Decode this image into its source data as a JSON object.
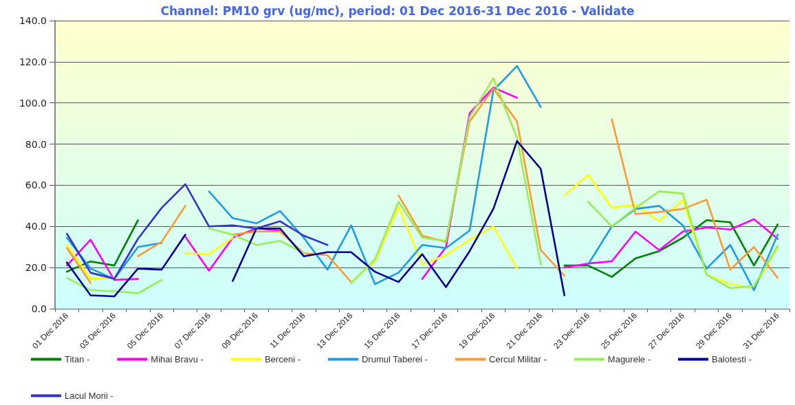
{
  "chart_data": {
    "type": "line",
    "title": "Channel: PM10 grv (ug/mc), period: 01 Dec 2016-31 Dec 2016 - Validate",
    "categories": [
      "01 Dec 2016",
      null,
      "03 Dec 2016",
      null,
      "05 Dec 2016",
      null,
      "07 Dec 2016",
      null,
      "09 Dec 2016",
      null,
      "11 Dec 2016",
      null,
      "13 Dec 2016",
      null,
      "15 Dec 2016",
      null,
      "17 Dec 2016",
      null,
      "19 Dec 2016",
      null,
      "21 Dec 2016",
      null,
      "23 Dec 2016",
      null,
      "25 Dec 2016",
      null,
      "27 Dec 2016",
      null,
      "29 Dec 2016",
      null,
      "31 Dec 2016"
    ],
    "series": [
      {
        "name": "Titan -",
        "color": "#008000",
        "values": [
          18,
          23,
          21,
          43,
          null,
          null,
          null,
          null,
          null,
          null,
          null,
          null,
          null,
          null,
          null,
          null,
          null,
          null,
          null,
          null,
          null,
          21,
          21,
          15.5,
          24.5,
          28,
          34.5,
          43,
          42,
          21,
          41
        ]
      },
      {
        "name": "Mihai Bravu -",
        "color": "#ff00ff",
        "values": [
          21,
          33.5,
          14,
          14.5,
          null,
          35,
          18.5,
          34.5,
          39,
          38,
          null,
          null,
          null,
          null,
          null,
          14.5,
          30,
          95,
          107.5,
          102.5,
          null,
          20,
          22,
          23,
          37.5,
          28.5,
          37.5,
          39.5,
          38.5,
          43.5,
          34
        ]
      },
      {
        "name": "Berceni -",
        "color": "#ffff00",
        "values": [
          31,
          14.5,
          15,
          null,
          null,
          27,
          26.5,
          34.5,
          null,
          null,
          null,
          null,
          13,
          23,
          49.5,
          21.5,
          26,
          33.5,
          40,
          19.5,
          null,
          55,
          65,
          49,
          50.5,
          42.5,
          53,
          16.5,
          12,
          10,
          30
        ]
      },
      {
        "name": "Drumul Taberei -",
        "color": "#1e9be6",
        "values": [
          34.5,
          19.5,
          14.5,
          30,
          32,
          null,
          57,
          44,
          41.5,
          47.5,
          34.5,
          19,
          40.5,
          12,
          17.5,
          31,
          29.5,
          38,
          106,
          118,
          98,
          null,
          21.5,
          40,
          48.5,
          50,
          40.5,
          19.5,
          31,
          9,
          36
        ]
      },
      {
        "name": "Cercul Militar -",
        "color": "#ff9933",
        "values": [
          29.5,
          12.5,
          null,
          25.5,
          32.5,
          50,
          null,
          36,
          37.5,
          37.5,
          27,
          26,
          13,
          null,
          55,
          35.5,
          32.5,
          91,
          107,
          91,
          28.5,
          16,
          null,
          92,
          46,
          47,
          48.5,
          53,
          19,
          30,
          15
        ]
      },
      {
        "name": "Magurele -",
        "color": "#99ee55",
        "values": [
          15,
          9,
          8.5,
          7.5,
          14,
          null,
          39,
          36,
          31,
          33,
          27,
          null,
          12.5,
          24,
          52,
          34.5,
          33,
          93,
          112,
          83,
          21.5,
          null,
          52,
          40,
          49,
          57,
          56,
          16.5,
          10,
          11,
          30.5
        ]
      },
      {
        "name": "Balotesti -",
        "color": "#000099",
        "values": [
          22.5,
          6.5,
          6,
          19.5,
          19,
          36,
          null,
          13.5,
          39,
          39,
          25.5,
          27.5,
          27.5,
          18,
          13,
          26.5,
          10.5,
          28,
          48.5,
          81.5,
          68,
          6.5,
          null,
          null,
          null,
          null,
          null,
          null,
          null,
          null,
          null
        ]
      },
      {
        "name": "Lacul Morii -",
        "color": "#3333cc",
        "values": [
          36.5,
          17.5,
          14.5,
          34,
          49,
          60.5,
          40,
          40.5,
          39,
          42.5,
          35.5,
          31,
          null,
          null,
          null,
          null,
          null,
          null,
          null,
          null,
          null,
          null,
          null,
          null,
          null,
          null,
          null,
          null,
          null,
          null,
          null
        ]
      }
    ],
    "ylim": [
      0,
      140
    ],
    "yticks": [
      {
        "value": 0,
        "label": "0.0"
      },
      {
        "value": 20,
        "label": "20.0"
      },
      {
        "value": 40,
        "label": "40.0"
      },
      {
        "value": 60,
        "label": "60.0"
      },
      {
        "value": 80,
        "label": "80.0"
      },
      {
        "value": 100,
        "label": "100.0"
      },
      {
        "value": 120,
        "label": "120.0"
      },
      {
        "value": 140,
        "label": "140.0"
      }
    ],
    "grid": "y",
    "legend": "bottom",
    "marker": "none",
    "line_style": "solid"
  }
}
